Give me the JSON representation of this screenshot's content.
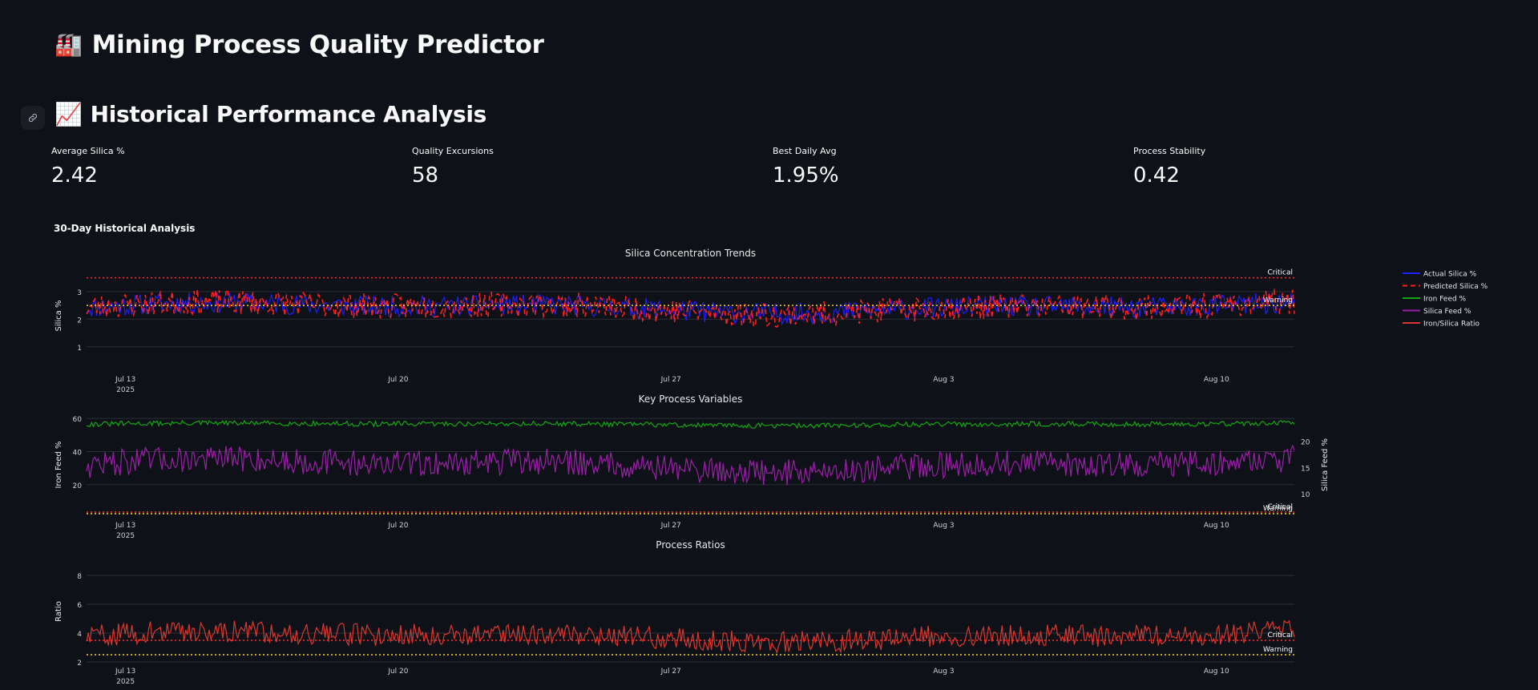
{
  "app": {
    "title": "Mining Process Quality Predictor",
    "title_icon": "🏭",
    "section_title": "Historical Performance Analysis",
    "section_icon": "📈",
    "anchor_icon": "link-icon"
  },
  "metrics": [
    {
      "label": "Average Silica %",
      "value": "2.42"
    },
    {
      "label": "Quality Excursions",
      "value": "58"
    },
    {
      "label": "Best Daily Avg",
      "value": "1.95%"
    },
    {
      "label": "Process Stability",
      "value": "0.42"
    }
  ],
  "chart_header": "30-Day Historical Analysis",
  "chart_data": {
    "type": "line",
    "x_range": [
      "2025-07-12",
      "2025-08-12"
    ],
    "x_ticks": [
      {
        "label": "Jul 13",
        "sub": "2025",
        "date": "2025-07-13"
      },
      {
        "label": "Jul 20",
        "sub": "",
        "date": "2025-07-20"
      },
      {
        "label": "Jul 27",
        "sub": "",
        "date": "2025-07-27"
      },
      {
        "label": "Aug 3",
        "sub": "",
        "date": "2025-08-03"
      },
      {
        "label": "Aug 10",
        "sub": "",
        "date": "2025-08-10"
      }
    ],
    "legend": [
      {
        "name": "Actual Silica %",
        "color": "#1f1fff",
        "dash": "solid"
      },
      {
        "name": "Predicted Silica %",
        "color": "#ff1f1f",
        "dash": "dash"
      },
      {
        "name": "Iron Feed %",
        "color": "#12a812",
        "dash": "solid"
      },
      {
        "name": "Silica Feed %",
        "color": "#9b1fa8",
        "dash": "solid"
      },
      {
        "name": "Iron/Silica Ratio",
        "color": "#d9372f",
        "dash": "solid"
      }
    ],
    "legend_position": "right",
    "subplots": [
      {
        "title": "Silica Concentration Trends",
        "ylabel": "Silica %",
        "y_ticks": [
          1,
          2,
          3
        ],
        "ylim": [
          0.5,
          3.75
        ],
        "series": [
          {
            "name": "Actual Silica %",
            "color": "#1f1fff",
            "dash": "solid",
            "mean": 2.42,
            "amp": 0.55,
            "seed": 11,
            "min": 1.5,
            "max": 3.2
          },
          {
            "name": "Predicted Silica %",
            "color": "#ff1f1f",
            "dash": "dash",
            "mean": 2.42,
            "amp": 0.65,
            "seed": 23,
            "min": 0.8,
            "max": 3.7
          }
        ],
        "thresholds": [
          {
            "label": "Critical",
            "value": 3.5,
            "color": "#ff2a2a"
          },
          {
            "label": "Warning",
            "value": 2.5,
            "color": "#ffd21f"
          }
        ]
      },
      {
        "title": "Key Process Variables",
        "ylabel": "Iron Feed %",
        "y2label": "Silica Feed %",
        "y_ticks": [
          20,
          40,
          60
        ],
        "y2_ticks": [
          10,
          15,
          20
        ],
        "ylim": [
          2,
          62
        ],
        "y2lim": [
          6,
          25
        ],
        "series": [
          {
            "name": "Iron Feed %",
            "color": "#12a812",
            "dash": "solid",
            "axis": "y",
            "mean": 56.5,
            "amp": 2.2,
            "seed": 31,
            "min": 52,
            "max": 61
          },
          {
            "name": "Silica Feed %",
            "color": "#9b1fa8",
            "dash": "solid",
            "axis": "y2",
            "mean": 15.5,
            "amp": 3.6,
            "seed": 47,
            "min": 7,
            "max": 24
          }
        ],
        "thresholds": [
          {
            "label": "Critical",
            "value": 3.5,
            "color": "#ff2a2a"
          },
          {
            "label": "Warning",
            "value": 2.5,
            "color": "#ffd21f"
          }
        ]
      },
      {
        "title": "Process Ratios",
        "ylabel": "Ratio",
        "y_ticks": [
          2,
          4,
          6,
          8
        ],
        "ylim": [
          2,
          9
        ],
        "series": [
          {
            "name": "Iron/Silica Ratio",
            "color": "#d9372f",
            "dash": "solid",
            "mean": 3.8,
            "amp": 1.1,
            "seed": 59,
            "min": 2.2,
            "max": 8.5
          }
        ],
        "thresholds": [
          {
            "label": "Critical",
            "value": 3.5,
            "color": "#ff2a2a"
          },
          {
            "label": "Warning",
            "value": 2.5,
            "color": "#ffd21f"
          }
        ]
      }
    ]
  }
}
